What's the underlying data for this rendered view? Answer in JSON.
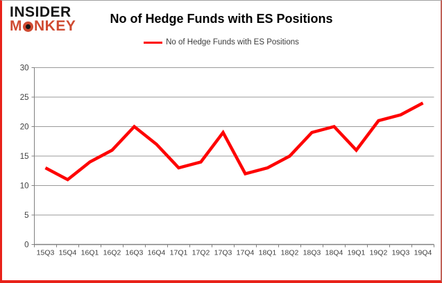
{
  "logo": {
    "line1": "INSIDER",
    "line2": "MONKEY"
  },
  "header": {
    "title": "No of Hedge Funds with ES Positions"
  },
  "legend": {
    "label": "No of Hedge Funds with ES Positions"
  },
  "chart_data": {
    "type": "line",
    "title": "No of Hedge Funds with ES Positions",
    "categories": [
      "15Q3",
      "15Q4",
      "16Q1",
      "16Q2",
      "16Q3",
      "16Q4",
      "17Q1",
      "17Q2",
      "17Q3",
      "17Q4",
      "18Q1",
      "18Q2",
      "18Q3",
      "18Q4",
      "19Q1",
      "19Q2",
      "19Q3",
      "19Q4"
    ],
    "series": [
      {
        "name": "No of Hedge Funds with ES Positions",
        "values": [
          13,
          11,
          14,
          16,
          20,
          17,
          13,
          14,
          19,
          12,
          13,
          15,
          19,
          20,
          16,
          21,
          22,
          24
        ]
      }
    ],
    "xlabel": "",
    "ylabel": "",
    "ylim": [
      0,
      30
    ],
    "ytick_step": 5,
    "grid": "horizontal",
    "legend_position": "top-center",
    "line_color": "#fe0000"
  },
  "colors": {
    "line": "#fe0000",
    "logo_red": "#cf4a31",
    "border_red": "#e8221a",
    "gridline": "#9a9a9a",
    "axis": "#808080",
    "tick_label": "#3f3f3f"
  }
}
